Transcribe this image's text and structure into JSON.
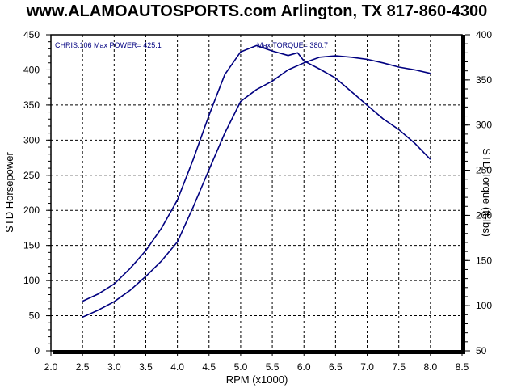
{
  "chart_data": {
    "type": "line",
    "title": "www.ALAMOAUTOSPORTS.com Arlington, TX 817-860-4300",
    "xlabel": "RPM (x1000)",
    "ylabel": "STD Horsepower",
    "y2label": "STD Torque (ft-lbs)",
    "xlim": [
      2.0,
      8.5
    ],
    "ylim": [
      0,
      450
    ],
    "y2lim": [
      50,
      400
    ],
    "xticks": [
      2.0,
      2.5,
      3.0,
      3.5,
      4.0,
      4.5,
      5.0,
      5.5,
      6.0,
      6.5,
      7.0,
      7.5,
      8.0,
      8.5
    ],
    "xtick_labels": [
      "2.0",
      "2.5",
      "3.0",
      "3.5",
      "4.0",
      "4.5",
      "5.0",
      "5.5",
      "6.0",
      "6.5",
      "7.0",
      "7.5",
      "8.0",
      "8.5"
    ],
    "yticks": [
      0,
      50,
      100,
      150,
      200,
      250,
      300,
      350,
      400,
      450
    ],
    "ytick_labels": [
      "0",
      "50",
      "100",
      "150",
      "200",
      "250",
      "300",
      "350",
      "400",
      "450"
    ],
    "y2ticks": [
      50,
      100,
      150,
      200,
      250,
      300,
      350,
      400
    ],
    "y2tick_labels": [
      "50",
      "100",
      "150",
      "200",
      "250",
      "300",
      "350",
      "400"
    ],
    "grid": true,
    "annotations": {
      "run_info": "CHRIS.106  Max POWER= 425.1",
      "max_torque": "Max TORQUE= 380.7"
    },
    "series": [
      {
        "axis": "right",
        "color": "#000080",
        "x": [
          2.5,
          2.75,
          3.0,
          3.25,
          3.5,
          3.75,
          4.0,
          4.25,
          4.5,
          4.75,
          5.0,
          5.25,
          5.5,
          5.75,
          5.9,
          6.0,
          6.25,
          6.5,
          6.75,
          7.0,
          7.25,
          7.5,
          7.75,
          8.0
        ],
        "y": [
          105,
          113,
          124,
          141,
          161,
          186,
          217,
          262,
          311,
          356,
          381,
          388,
          382,
          377,
          380,
          371,
          362,
          352,
          337,
          322,
          307,
          295,
          280,
          262
        ]
      },
      {
        "axis": "left",
        "color": "#000080",
        "x": [
          2.5,
          2.75,
          3.0,
          3.25,
          3.5,
          3.75,
          4.0,
          4.25,
          4.5,
          4.75,
          5.0,
          5.25,
          5.5,
          5.75,
          6.0,
          6.25,
          6.5,
          6.75,
          7.0,
          7.25,
          7.5,
          7.75,
          8.0
        ],
        "y": [
          48,
          58,
          70,
          86,
          106,
          128,
          155,
          205,
          258,
          310,
          355,
          372,
          384,
          400,
          410,
          418,
          420,
          418,
          415,
          410,
          404,
          400,
          395
        ]
      }
    ]
  }
}
